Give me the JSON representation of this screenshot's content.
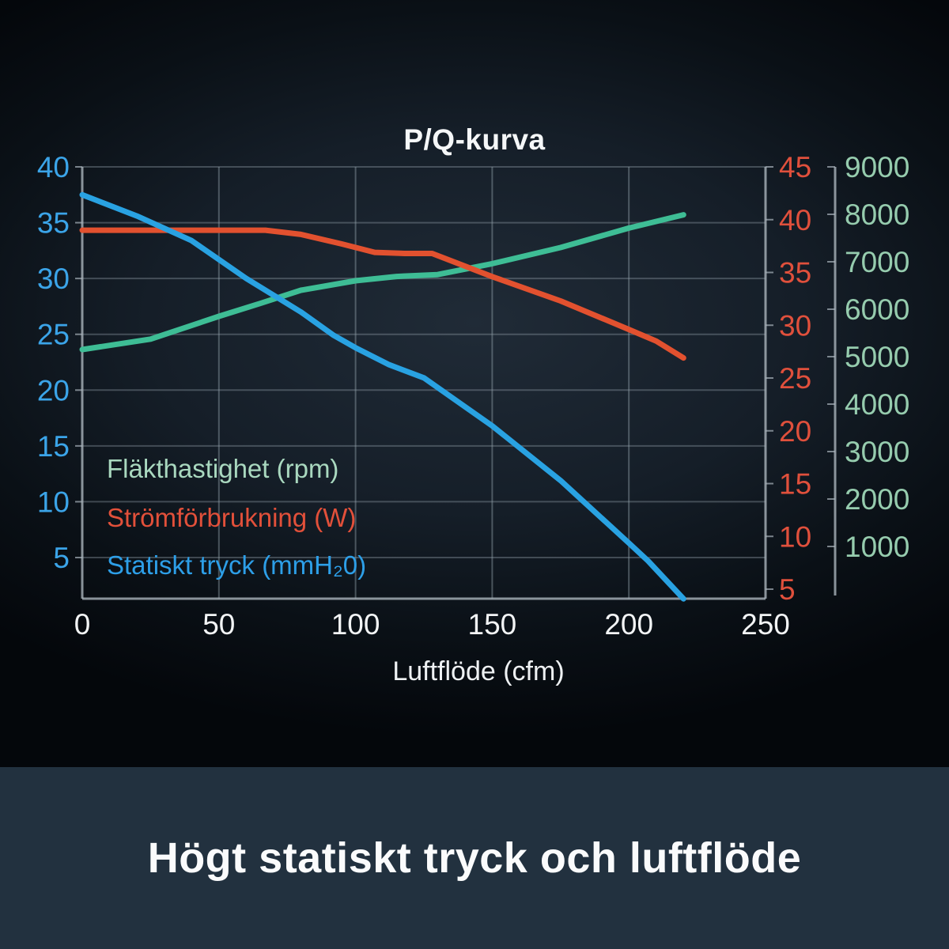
{
  "banner": {
    "text": "Högt statiskt tryck och luftflöde"
  },
  "chart_data": {
    "type": "line",
    "title": "P/Q-kurva",
    "xlabel": "Luftflöde (cfm)",
    "x_range": [
      0,
      250
    ],
    "x_ticks": [
      0,
      50,
      100,
      150,
      200,
      250
    ],
    "grid": true,
    "legend_position": "inside-bottom-left",
    "axes": {
      "left": {
        "name": "Statiskt tryck (mmH₂0)",
        "range_top": 40,
        "range_bottom": 5,
        "ticks": [
          40,
          35,
          30,
          25,
          20,
          15,
          10,
          5
        ],
        "tick_color": "#3ba4e8"
      },
      "right_inner": {
        "name": "Strömförbrukning (W)",
        "range_top": 45,
        "range_bottom": 5,
        "ticks": [
          45,
          40,
          35,
          30,
          25,
          20,
          15,
          10,
          5
        ],
        "tick_color": "#e0503c"
      },
      "right_outer": {
        "name": "Fläkthastighet (rpm)",
        "range_top": 9000,
        "range_bottom": 1000,
        "ticks": [
          9000,
          8000,
          7000,
          6000,
          5000,
          4000,
          3000,
          2000,
          1000
        ],
        "tick_color": "#96ccae"
      }
    },
    "series": [
      {
        "name": "Fläkthastighet (rpm)",
        "axis": "right_outer",
        "color": "#3ebd95",
        "x": [
          0,
          25,
          50,
          65,
          80,
          100,
          115,
          130,
          150,
          175,
          200,
          210,
          220
        ],
        "y": [
          5150,
          5370,
          5850,
          6120,
          6400,
          6600,
          6690,
          6730,
          6960,
          7300,
          7710,
          7850,
          7990
        ]
      },
      {
        "name": "Strömförbrukning (W)",
        "axis": "right_inner",
        "color": "#e2512f",
        "x": [
          0,
          30,
          67,
          80,
          95,
          107,
          118,
          128,
          150,
          175,
          200,
          210,
          220
        ],
        "y": [
          39.0,
          39.0,
          39.0,
          38.6,
          37.7,
          36.9,
          36.8,
          36.8,
          34.6,
          32.3,
          29.6,
          28.5,
          26.9
        ]
      },
      {
        "name": "Statiskt tryck (mmH₂0)",
        "axis": "left",
        "color": "#29a2e2",
        "x": [
          0,
          20,
          40,
          60,
          80,
          92,
          100,
          112,
          125,
          150,
          175,
          200,
          207,
          220
        ],
        "y": [
          37.5,
          35.6,
          33.4,
          30.0,
          27.0,
          24.9,
          23.8,
          22.3,
          21.1,
          16.8,
          11.9,
          6.3,
          4.7,
          1.3
        ]
      }
    ],
    "legend": [
      {
        "label": "Fläkthastighet (rpm)",
        "color": "#a9d8bf"
      },
      {
        "label": "Strömförbrukning (W)",
        "color": "#e2503a"
      },
      {
        "label": "Statiskt tryck (mmH₂0)",
        "color": "#2d9fe8"
      }
    ]
  },
  "colors": {
    "background_center": "#202b37",
    "background_edge": "#04070b",
    "banner_background": "#22313f",
    "grid_line": "#93a1ab",
    "axis_line": "#aab4bc",
    "title_text": "#f5f7f8",
    "x_tick_text": "#f2f4f5"
  }
}
